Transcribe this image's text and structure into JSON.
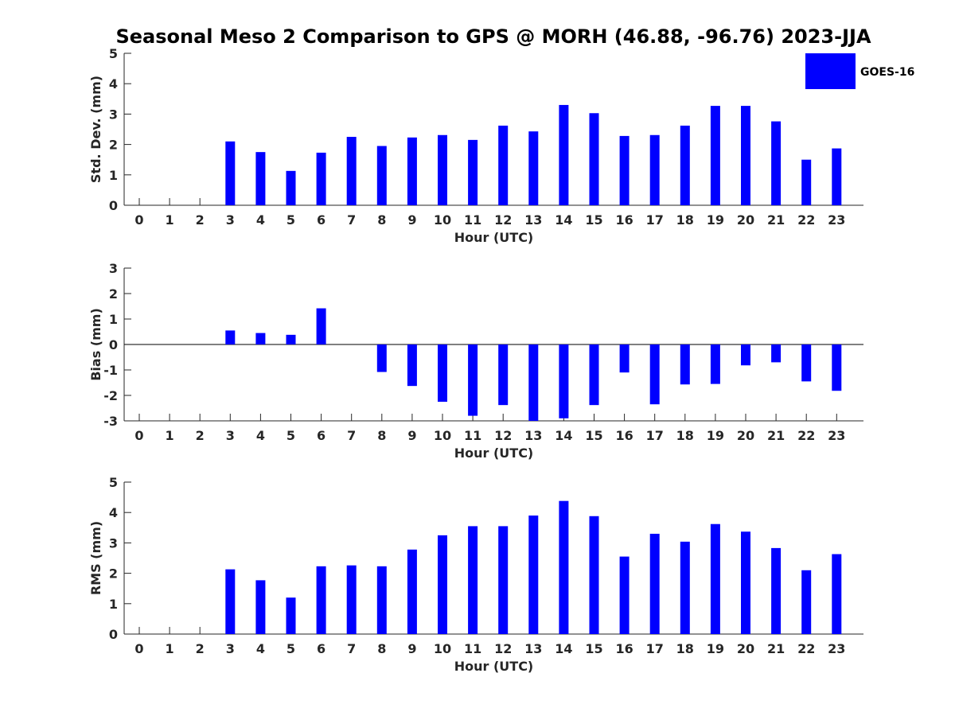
{
  "figure": {
    "title": "Seasonal Meso 2 Comparison to GPS @ MORH (46.88, -96.76) 2023-JJA"
  },
  "legend": {
    "label": "GOES-16",
    "color": "#0000ff",
    "placement": "top-right"
  },
  "chart_data": [
    {
      "type": "bar",
      "categories": [
        "0",
        "1",
        "2",
        "3",
        "4",
        "5",
        "6",
        "7",
        "8",
        "9",
        "10",
        "11",
        "12",
        "13",
        "14",
        "15",
        "16",
        "17",
        "18",
        "19",
        "20",
        "21",
        "22",
        "23"
      ],
      "series": [
        {
          "name": "GOES-16",
          "color": "#0000ff",
          "values": [
            null,
            null,
            null,
            2.1,
            1.75,
            1.13,
            1.73,
            2.25,
            1.95,
            2.23,
            2.31,
            2.15,
            2.62,
            2.43,
            3.3,
            3.03,
            2.28,
            2.31,
            2.62,
            3.27,
            3.27,
            2.76,
            1.5,
            1.87
          ]
        }
      ],
      "xlabel": "Hour (UTC)",
      "ylabel": "Std. Dev. (mm)",
      "ylim": [
        0,
        5
      ],
      "yticks": [
        0,
        1,
        2,
        3,
        4,
        5
      ],
      "grid": false
    },
    {
      "type": "bar",
      "categories": [
        "0",
        "1",
        "2",
        "3",
        "4",
        "5",
        "6",
        "7",
        "8",
        "9",
        "10",
        "11",
        "12",
        "13",
        "14",
        "15",
        "16",
        "17",
        "18",
        "19",
        "20",
        "21",
        "22",
        "23"
      ],
      "series": [
        {
          "name": "GOES-16",
          "color": "#0000ff",
          "values": [
            null,
            null,
            null,
            0.55,
            0.45,
            0.38,
            1.42,
            null,
            -1.08,
            -1.63,
            -2.25,
            -2.8,
            -2.38,
            -3.0,
            -2.9,
            -2.38,
            -1.1,
            -2.35,
            -1.57,
            -1.55,
            -0.82,
            -0.7,
            -1.45,
            -1.82
          ]
        }
      ],
      "xlabel": "Hour (UTC)",
      "ylabel": "Bias (mm)",
      "ylim": [
        -3,
        3
      ],
      "yticks": [
        -3,
        -2,
        -1,
        0,
        1,
        2,
        3
      ],
      "grid": false
    },
    {
      "type": "bar",
      "categories": [
        "0",
        "1",
        "2",
        "3",
        "4",
        "5",
        "6",
        "7",
        "8",
        "9",
        "10",
        "11",
        "12",
        "13",
        "14",
        "15",
        "16",
        "17",
        "18",
        "19",
        "20",
        "21",
        "22",
        "23"
      ],
      "series": [
        {
          "name": "GOES-16",
          "color": "#0000ff",
          "values": [
            null,
            null,
            null,
            2.13,
            1.77,
            1.2,
            2.23,
            2.26,
            2.23,
            2.78,
            3.25,
            3.55,
            3.55,
            3.9,
            4.38,
            3.88,
            2.55,
            3.3,
            3.04,
            3.62,
            3.37,
            2.83,
            2.1,
            2.63
          ]
        }
      ],
      "xlabel": "Hour (UTC)",
      "ylabel": "RMS (mm)",
      "ylim": [
        0,
        5
      ],
      "yticks": [
        0,
        1,
        2,
        3,
        4,
        5
      ],
      "grid": false
    }
  ]
}
